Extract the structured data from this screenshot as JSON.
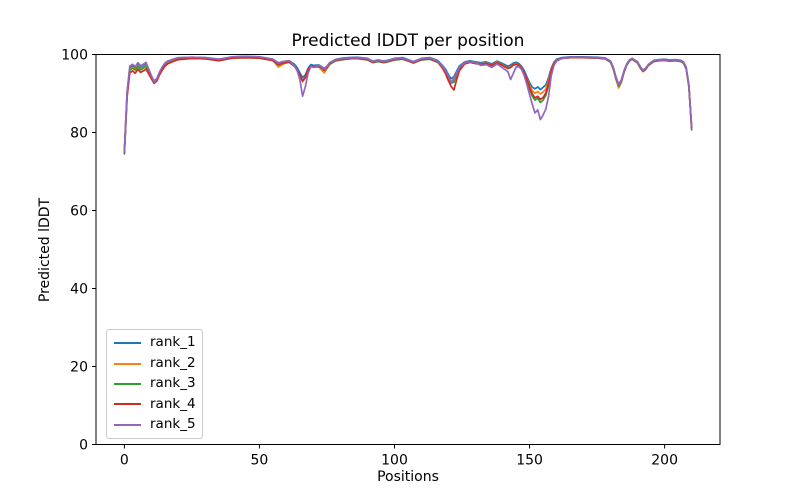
{
  "chart_data": {
    "type": "line",
    "title": "Predicted lDDT per position",
    "xlabel": "Positions",
    "ylabel": "Predicted lDDT",
    "xlim": [
      -10.5,
      220.5
    ],
    "ylim": [
      0,
      100
    ],
    "xticks": [
      0,
      50,
      100,
      150,
      200
    ],
    "yticks": [
      0,
      20,
      40,
      60,
      80,
      100
    ],
    "grid": false,
    "legend_position": "lower left",
    "x": [
      0,
      1,
      2,
      3,
      4,
      5,
      6,
      7,
      8,
      9,
      10,
      11,
      12,
      13,
      14,
      15,
      16,
      18,
      20,
      25,
      30,
      35,
      40,
      45,
      50,
      55,
      57,
      59,
      61,
      63,
      64,
      65,
      66,
      67,
      68,
      69,
      70,
      72,
      73,
      74,
      75,
      76,
      78,
      80,
      83,
      86,
      90,
      92,
      94,
      96,
      98,
      100,
      103,
      105,
      107,
      110,
      113,
      116,
      118,
      119,
      120,
      121,
      122,
      123,
      124,
      126,
      128,
      130,
      132,
      134,
      136,
      138,
      140,
      142,
      143,
      144,
      145,
      146,
      147,
      148,
      149,
      150,
      151,
      152,
      153,
      154,
      155,
      156,
      157,
      158,
      159,
      160,
      162,
      165,
      170,
      175,
      178,
      180,
      181,
      182,
      183,
      184,
      185,
      186,
      187,
      188,
      190,
      191,
      192,
      193,
      194,
      196,
      198,
      200,
      202,
      204,
      206,
      207,
      208,
      209,
      210
    ],
    "series": [
      {
        "name": "rank_1",
        "color": "#1f77b4",
        "y": [
          75.5,
          90.2,
          96.5,
          97.0,
          96.4,
          97.4,
          96.6,
          97.0,
          97.5,
          96.0,
          94.5,
          93.2,
          93.8,
          95.4,
          96.6,
          97.6,
          98.1,
          98.7,
          99.1,
          99.3,
          99.2,
          98.8,
          99.4,
          99.5,
          99.4,
          98.8,
          97.9,
          98.2,
          98.4,
          97.5,
          96.6,
          95.3,
          94.1,
          94.8,
          96.5,
          97.4,
          97.2,
          97.3,
          96.9,
          96.4,
          97.0,
          97.9,
          98.7,
          99.0,
          99.2,
          99.3,
          99.0,
          98.3,
          98.6,
          98.3,
          98.6,
          99.0,
          99.2,
          98.7,
          98.2,
          99.0,
          99.2,
          98.5,
          97.0,
          96.1,
          94.8,
          93.8,
          94.3,
          95.7,
          97.0,
          98.1,
          98.4,
          98.1,
          97.9,
          98.1,
          97.6,
          98.3,
          97.7,
          97.0,
          97.3,
          97.8,
          98.0,
          97.7,
          97.0,
          95.9,
          94.3,
          92.8,
          91.6,
          91.2,
          91.7,
          91.0,
          91.6,
          92.2,
          94.0,
          96.5,
          98.0,
          98.8,
          99.2,
          99.4,
          99.4,
          99.3,
          99.1,
          98.3,
          96.7,
          94.2,
          92.3,
          93.5,
          95.9,
          97.6,
          98.6,
          99.0,
          98.1,
          96.9,
          96.0,
          96.5,
          97.5,
          98.5,
          98.7,
          98.8,
          98.6,
          98.7,
          98.5,
          98.1,
          96.7,
          92.2,
          80.7
        ]
      },
      {
        "name": "rank_2",
        "color": "#ff7f0e",
        "y": [
          75.2,
          89.8,
          96.2,
          96.7,
          96.1,
          97.1,
          96.3,
          96.7,
          97.2,
          95.6,
          94.1,
          92.8,
          93.4,
          95.0,
          96.3,
          97.3,
          97.8,
          98.4,
          98.8,
          99.0,
          98.9,
          98.5,
          99.1,
          99.2,
          99.1,
          98.4,
          96.8,
          97.6,
          98.1,
          96.9,
          95.9,
          94.4,
          93.0,
          94.0,
          96.0,
          97.0,
          96.8,
          96.8,
          96.0,
          95.3,
          96.4,
          97.5,
          98.4,
          98.7,
          98.9,
          99.0,
          98.7,
          98.0,
          98.3,
          98.0,
          98.3,
          98.7,
          98.9,
          98.4,
          97.9,
          98.7,
          98.9,
          98.1,
          96.2,
          94.9,
          93.2,
          93.0,
          93.8,
          95.0,
          96.5,
          97.8,
          98.1,
          97.8,
          97.6,
          97.8,
          97.3,
          98.0,
          97.3,
          96.5,
          96.8,
          97.4,
          97.6,
          97.3,
          96.6,
          95.2,
          93.7,
          92.0,
          90.7,
          90.1,
          90.5,
          89.9,
          90.4,
          91.1,
          93.2,
          96.1,
          97.8,
          98.6,
          99.0,
          99.2,
          99.2,
          99.1,
          98.9,
          98.0,
          96.2,
          93.6,
          91.4,
          92.9,
          95.5,
          97.3,
          98.4,
          98.8,
          97.8,
          96.5,
          95.6,
          96.1,
          97.2,
          98.2,
          98.4,
          98.5,
          98.3,
          98.4,
          98.2,
          97.8,
          96.3,
          91.7,
          81.2
        ]
      },
      {
        "name": "rank_3",
        "color": "#2ca02c",
        "y": [
          74.5,
          89.5,
          96.0,
          96.5,
          96.0,
          96.9,
          96.1,
          96.5,
          97.0,
          95.5,
          94.0,
          92.7,
          93.3,
          94.9,
          96.2,
          97.2,
          97.7,
          98.3,
          98.8,
          99.0,
          98.9,
          98.4,
          99.1,
          99.2,
          99.1,
          98.5,
          97.3,
          97.8,
          98.0,
          97.0,
          96.0,
          94.5,
          93.1,
          94.1,
          96.0,
          97.0,
          96.8,
          96.9,
          96.5,
          95.9,
          96.6,
          97.5,
          98.3,
          98.6,
          98.9,
          99.0,
          98.6,
          97.9,
          98.2,
          97.9,
          98.2,
          98.6,
          98.8,
          98.3,
          97.8,
          98.6,
          98.8,
          98.0,
          96.4,
          95.3,
          93.8,
          92.7,
          92.9,
          94.6,
          96.2,
          97.7,
          98.0,
          97.7,
          97.5,
          97.7,
          97.2,
          97.9,
          97.2,
          96.4,
          96.7,
          97.3,
          97.5,
          97.2,
          96.5,
          95.1,
          93.1,
          91.1,
          89.3,
          88.3,
          88.8,
          87.7,
          88.3,
          89.5,
          92.1,
          95.6,
          97.6,
          98.5,
          99.0,
          99.2,
          99.2,
          99.1,
          98.9,
          98.0,
          96.3,
          93.8,
          91.9,
          93.1,
          95.5,
          97.3,
          98.3,
          98.8,
          97.8,
          96.6,
          95.7,
          96.2,
          97.2,
          98.2,
          98.4,
          98.5,
          98.3,
          98.4,
          98.2,
          97.8,
          96.3,
          91.8,
          81.5
        ]
      },
      {
        "name": "rank_4",
        "color": "#d62728",
        "y": [
          74.8,
          89.2,
          95.3,
          95.8,
          95.2,
          96.2,
          95.4,
          95.8,
          96.3,
          95.0,
          93.8,
          92.6,
          93.2,
          94.8,
          96.0,
          97.0,
          97.6,
          98.2,
          98.7,
          99.0,
          98.9,
          98.4,
          99.1,
          99.2,
          99.1,
          98.5,
          97.4,
          97.9,
          98.1,
          97.0,
          96.0,
          94.6,
          93.3,
          94.2,
          96.1,
          97.1,
          96.9,
          97.0,
          96.6,
          96.0,
          96.7,
          97.6,
          98.4,
          98.7,
          98.9,
          99.0,
          98.7,
          98.0,
          98.3,
          98.0,
          98.3,
          98.7,
          98.9,
          98.4,
          97.9,
          98.7,
          98.9,
          98.1,
          96.3,
          95.0,
          93.3,
          91.8,
          90.9,
          93.5,
          95.8,
          97.6,
          98.0,
          97.7,
          97.5,
          97.7,
          97.2,
          97.9,
          97.2,
          96.4,
          96.7,
          97.3,
          97.5,
          97.2,
          96.5,
          95.3,
          93.5,
          91.6,
          89.9,
          88.9,
          89.3,
          88.5,
          89.0,
          90.1,
          92.6,
          95.8,
          97.7,
          98.5,
          99.0,
          99.2,
          99.2,
          99.1,
          98.9,
          98.1,
          96.5,
          94.0,
          92.1,
          93.3,
          95.6,
          97.4,
          98.4,
          98.9,
          97.9,
          96.7,
          95.8,
          96.3,
          97.3,
          98.3,
          98.5,
          98.6,
          98.4,
          98.5,
          98.3,
          97.9,
          96.4,
          91.9,
          81.3
        ]
      },
      {
        "name": "rank_5",
        "color": "#9467bd",
        "y": [
          75.0,
          90.5,
          97.0,
          97.5,
          96.9,
          97.9,
          97.1,
          97.5,
          98.0,
          96.3,
          94.6,
          92.9,
          93.7,
          95.5,
          96.8,
          97.8,
          98.3,
          98.8,
          99.2,
          99.3,
          99.2,
          98.8,
          99.4,
          99.5,
          99.4,
          98.8,
          97.8,
          98.2,
          98.4,
          97.1,
          95.8,
          93.5,
          89.3,
          91.8,
          95.2,
          96.9,
          96.7,
          97.2,
          96.8,
          96.2,
          96.9,
          97.8,
          98.6,
          98.9,
          99.1,
          99.2,
          98.9,
          98.2,
          98.5,
          98.2,
          98.5,
          98.9,
          99.1,
          98.6,
          98.1,
          98.9,
          99.1,
          98.3,
          96.7,
          95.7,
          94.4,
          92.9,
          93.5,
          95.1,
          96.6,
          97.9,
          98.2,
          97.9,
          97.2,
          97.4,
          96.7,
          97.6,
          96.6,
          95.6,
          93.6,
          95.2,
          96.8,
          96.9,
          96.2,
          94.6,
          92.3,
          89.7,
          87.2,
          85.0,
          85.8,
          83.3,
          84.5,
          86.0,
          89.2,
          94.5,
          97.2,
          98.3,
          99.0,
          99.3,
          99.3,
          99.2,
          99.0,
          98.2,
          96.6,
          94.1,
          92.2,
          93.4,
          95.7,
          97.5,
          98.5,
          99.0,
          98.0,
          96.8,
          95.9,
          96.4,
          97.4,
          98.4,
          98.6,
          98.7,
          98.5,
          98.6,
          98.4,
          98.0,
          96.5,
          92.0,
          81.6
        ]
      }
    ]
  }
}
